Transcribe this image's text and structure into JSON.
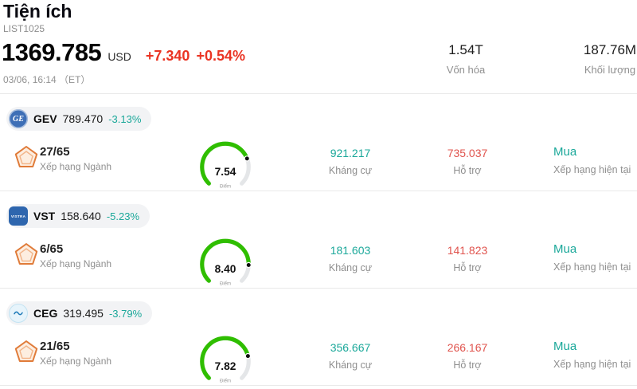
{
  "header": {
    "title": "Tiện ích",
    "subtitle": "LIST1025",
    "price": "1369.785",
    "currency": "USD",
    "change": "+7.340",
    "change_pct": "+0.54%",
    "timestamp": "03/06, 16:14 （ET）",
    "stats": [
      {
        "value": "1.54T",
        "label": "Vốn hóa"
      },
      {
        "value": "187.76M",
        "label": "Khối lượng"
      }
    ]
  },
  "labels": {
    "industry_rank": "Xếp hạng Ngành",
    "resistance": "Kháng cự",
    "support": "Hỗ trợ",
    "current_rating": "Xếp hạng hiện tại",
    "gauge_unit": "Điểm"
  },
  "colors": {
    "up_red": "#ea3423",
    "down_teal": "#1ba89a",
    "support_red": "#e0544e",
    "gauge_green": "#2fbe00",
    "gauge_track": "#e4e6e8"
  },
  "gauge": {
    "max": 10
  },
  "stocks": [
    {
      "ticker": "GEV",
      "price": "789.470",
      "change_pct": "-3.13%",
      "rank": "27/65",
      "score": 7.54,
      "score_display": "7.54",
      "resistance": "921.217",
      "support": "735.037",
      "rating": "Mua",
      "logo": {
        "kind": "ge",
        "text": "GE"
      }
    },
    {
      "ticker": "VST",
      "price": "158.640",
      "change_pct": "-5.23%",
      "rank": "6/65",
      "score": 8.4,
      "score_display": "8.40",
      "resistance": "181.603",
      "support": "141.823",
      "rating": "Mua",
      "logo": {
        "kind": "vst",
        "text": "VISTRA"
      }
    },
    {
      "ticker": "CEG",
      "price": "319.495",
      "change_pct": "-3.79%",
      "rank": "21/65",
      "score": 7.82,
      "score_display": "7.82",
      "resistance": "356.667",
      "support": "266.167",
      "rating": "Mua",
      "logo": {
        "kind": "ceg",
        "text": ""
      }
    }
  ]
}
